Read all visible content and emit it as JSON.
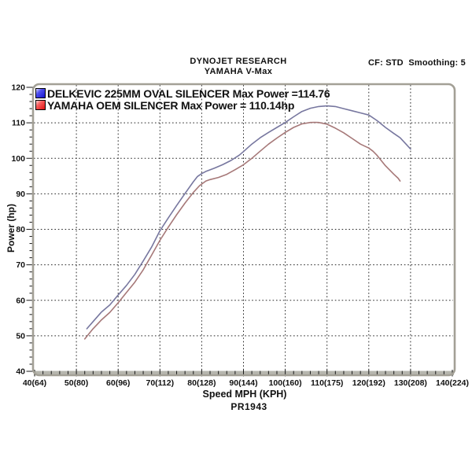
{
  "header": {
    "title_line1": "DYNOJET RESEARCH",
    "title_line2": "YAMAHA V-Max",
    "settings": "CF: STD  Smoothing: 5"
  },
  "footer": {
    "x_title": "Speed MPH (KPH)",
    "run_id": "PR1943"
  },
  "chart_data": {
    "type": "line",
    "title": "DYNOJET RESEARCH — YAMAHA V-Max",
    "xlabel": "Speed MPH (KPH)",
    "ylabel": "Power (hp)",
    "xlim": [
      40,
      140
    ],
    "ylim": [
      40,
      120
    ],
    "grid": "dotted",
    "legend_position": "top-left-inside",
    "x_minor_step": 2,
    "y_minor_step": 2,
    "x_ticks": [
      {
        "mph": 40,
        "label": "40(64)"
      },
      {
        "mph": 50,
        "label": "50(80)"
      },
      {
        "mph": 60,
        "label": "60(96)"
      },
      {
        "mph": 70,
        "label": "70(112)"
      },
      {
        "mph": 80,
        "label": "80(128)"
      },
      {
        "mph": 90,
        "label": "90(144)"
      },
      {
        "mph": 100,
        "label": "100(160)"
      },
      {
        "mph": 110,
        "label": "110(175)"
      },
      {
        "mph": 120,
        "label": "120(192)"
      },
      {
        "mph": 130,
        "label": "130(208)"
      },
      {
        "mph": 140,
        "label": "140(224)"
      }
    ],
    "y_ticks": [
      40,
      50,
      60,
      70,
      80,
      90,
      100,
      110,
      120
    ],
    "legend": [
      {
        "label": "DELKEVIC 225MM OVAL SILENCER Max Power =114.76",
        "swatch_color": "#1414cc"
      },
      {
        "label": "YAMAHA OEM SILENCER Max Power = 110.14hp",
        "swatch_color": "#e01010"
      }
    ],
    "series": [
      {
        "name": "DELKEVIC 225MM OVAL SILENCER",
        "max_power_hp": 114.76,
        "color": "#77779f",
        "points": [
          [
            52.5,
            52.0
          ],
          [
            54,
            54.0
          ],
          [
            56,
            56.7
          ],
          [
            58,
            58.7
          ],
          [
            60,
            61.5
          ],
          [
            62,
            64.2
          ],
          [
            64,
            67.3
          ],
          [
            66,
            71.1
          ],
          [
            68,
            75.0
          ],
          [
            70,
            79.6
          ],
          [
            72,
            83.2
          ],
          [
            74,
            86.7
          ],
          [
            76,
            90.1
          ],
          [
            78,
            93.4
          ],
          [
            79,
            94.9
          ],
          [
            80,
            95.7
          ],
          [
            81,
            96.3
          ],
          [
            83,
            97.2
          ],
          [
            85,
            98.2
          ],
          [
            87,
            99.4
          ],
          [
            89,
            100.9
          ],
          [
            90,
            101.9
          ],
          [
            92,
            104.0
          ],
          [
            94,
            105.8
          ],
          [
            96,
            107.3
          ],
          [
            98,
            108.7
          ],
          [
            100,
            110.1
          ],
          [
            102,
            111.7
          ],
          [
            104,
            113.2
          ],
          [
            106,
            114.1
          ],
          [
            108,
            114.6
          ],
          [
            110,
            114.76
          ],
          [
            112,
            114.6
          ],
          [
            114,
            114.0
          ],
          [
            116,
            113.4
          ],
          [
            118,
            112.8
          ],
          [
            120,
            112.2
          ],
          [
            122,
            110.6
          ],
          [
            124,
            108.7
          ],
          [
            126,
            107.0
          ],
          [
            127.5,
            105.8
          ],
          [
            129,
            103.9
          ],
          [
            130,
            102.6
          ]
        ]
      },
      {
        "name": "YAMAHA OEM SILENCER",
        "max_power_hp": 110.14,
        "color": "#a67878",
        "points": [
          [
            52,
            49.1
          ],
          [
            54,
            52.0
          ],
          [
            56,
            54.5
          ],
          [
            58,
            56.6
          ],
          [
            60,
            59.3
          ],
          [
            62,
            62.2
          ],
          [
            64,
            65.1
          ],
          [
            66,
            68.6
          ],
          [
            68,
            72.7
          ],
          [
            70,
            76.9
          ],
          [
            72,
            80.6
          ],
          [
            74,
            84.1
          ],
          [
            76,
            87.4
          ],
          [
            78,
            90.4
          ],
          [
            79.5,
            92.3
          ],
          [
            81,
            93.6
          ],
          [
            82,
            94.0
          ],
          [
            84,
            94.6
          ],
          [
            86,
            95.5
          ],
          [
            88,
            96.8
          ],
          [
            90,
            98.2
          ],
          [
            92,
            100.0
          ],
          [
            94,
            102.0
          ],
          [
            96,
            104.0
          ],
          [
            98,
            105.7
          ],
          [
            100,
            107.3
          ],
          [
            102,
            108.7
          ],
          [
            104,
            109.7
          ],
          [
            106,
            110.1
          ],
          [
            107,
            110.14
          ],
          [
            108,
            110.1
          ],
          [
            110,
            109.6
          ],
          [
            112,
            108.5
          ],
          [
            114,
            107.2
          ],
          [
            116,
            105.6
          ],
          [
            118,
            104.0
          ],
          [
            120,
            102.9
          ],
          [
            121,
            102.0
          ],
          [
            122,
            100.8
          ],
          [
            124,
            97.9
          ],
          [
            126,
            95.5
          ],
          [
            127,
            94.4
          ],
          [
            127.5,
            93.6
          ]
        ]
      }
    ]
  }
}
